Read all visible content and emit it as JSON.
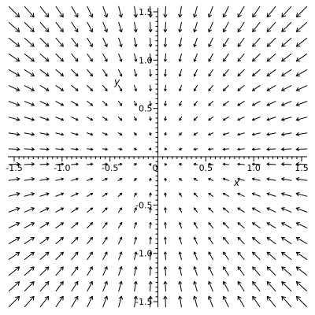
{
  "chart_data": {
    "type": "vector-field",
    "title": "",
    "xlabel": "x",
    "ylabel": "y",
    "xlim": [
      -1.5,
      1.5
    ],
    "ylim": [
      -1.5,
      1.5
    ],
    "grid": false,
    "xticks": [
      {
        "value": -1.5,
        "label": "-1.5"
      },
      {
        "value": -1.0,
        "label": "-1.0"
      },
      {
        "value": -0.5,
        "label": "-0.5"
      },
      {
        "value": 0.0,
        "label": "0"
      },
      {
        "value": 0.5,
        "label": "0.5"
      },
      {
        "value": 1.0,
        "label": "1.0"
      },
      {
        "value": 1.5,
        "label": "1.5"
      }
    ],
    "yticks": [
      {
        "value": -1.5,
        "label": "-1.5"
      },
      {
        "value": -1.0,
        "label": "-1.0"
      },
      {
        "value": -0.5,
        "label": "-0.5"
      },
      {
        "value": 0.5,
        "label": "0.5"
      },
      {
        "value": 1.0,
        "label": "1.0"
      },
      {
        "value": 1.5,
        "label": "1.5"
      }
    ],
    "field": {
      "x_range": [
        -1.5,
        1.5
      ],
      "y_range": [
        -1.5,
        1.5
      ],
      "samples_per_axis": 20,
      "direction_vector": {
        "u": "-x",
        "v": "-y"
      },
      "arrow_style": "black thin"
    }
  }
}
